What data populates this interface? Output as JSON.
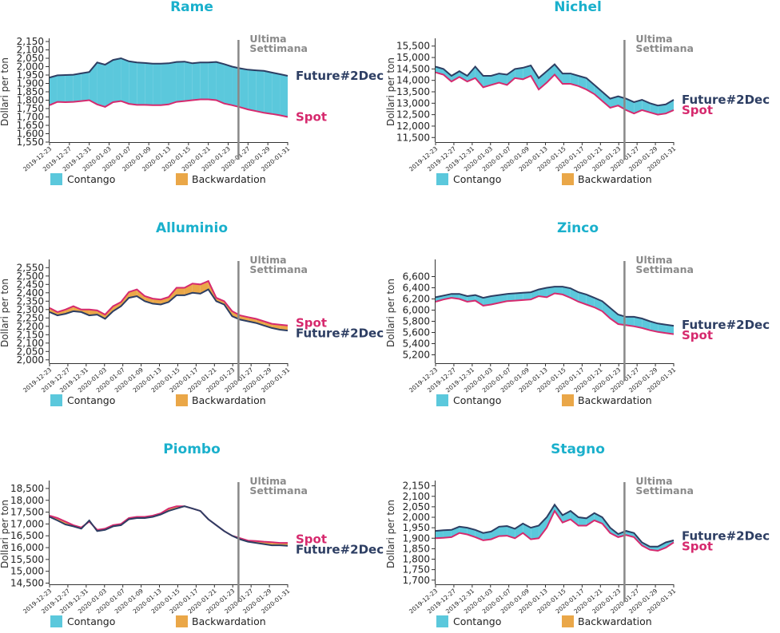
{
  "colors": {
    "title": "#1ab0cc",
    "future": "#2d3e63",
    "spot": "#d62a6e",
    "contango": "#5bc8dc",
    "backwardation": "#eaa748",
    "divider": "#888888",
    "annotation": "#8a8a8a",
    "axis": "#333333"
  },
  "chart_data": [
    {
      "type": "area",
      "title": "Rame",
      "ylabel": "Dollari per ton",
      "ylim": [
        1550,
        2150
      ],
      "yticks": [
        1550,
        1600,
        1650,
        1700,
        1750,
        1800,
        1850,
        1900,
        1950,
        2000,
        2050,
        2100,
        2150
      ],
      "tick_labels_x": [
        "2019-12-23",
        "2019-12-27",
        "2019-12-31",
        "2020-01-03",
        "2020-01-07",
        "2020-01-09",
        "2020-01-13",
        "2020-01-15",
        "2020-01-21",
        "2020-01-23",
        "2020-01-27",
        "2020-01-29",
        "2020-01-31"
      ],
      "annotation": [
        "Ultima",
        "Settimana"
      ],
      "last_week_start_index": 24,
      "legend": [
        "Contango",
        "Backwardation"
      ],
      "series": [
        {
          "name": "Future#2Dec",
          "values": [
            1935,
            1948,
            1950,
            1952,
            1960,
            1968,
            2025,
            2012,
            2040,
            2050,
            2032,
            2025,
            2022,
            2018,
            2018,
            2020,
            2028,
            2030,
            2020,
            2025,
            2025,
            2028,
            2015,
            2000,
            1990,
            1982,
            1978,
            1975,
            1965,
            1955,
            1945
          ]
        },
        {
          "name": "Spot",
          "values": [
            1770,
            1790,
            1788,
            1790,
            1795,
            1800,
            1775,
            1760,
            1788,
            1795,
            1778,
            1772,
            1772,
            1770,
            1770,
            1775,
            1790,
            1795,
            1800,
            1805,
            1805,
            1800,
            1780,
            1770,
            1758,
            1745,
            1735,
            1725,
            1718,
            1710,
            1700
          ]
        }
      ]
    },
    {
      "type": "area",
      "title": "Nichel",
      "ylabel": "Dollari per ton",
      "ylim": [
        11300,
        15700
      ],
      "yticks": [
        11500,
        12000,
        12500,
        13000,
        13500,
        14000,
        14500,
        15000,
        15500
      ],
      "tick_labels_x": [
        "2019-12-23",
        "2019-12-27",
        "2019-12-31",
        "2020-01-03",
        "2020-01-07",
        "2020-01-09",
        "2020-01-13",
        "2020-01-15",
        "2020-01-17",
        "2020-01-21",
        "2020-01-23",
        "2020-01-27",
        "2020-01-29",
        "2020-01-31"
      ],
      "annotation": [
        "Ultima",
        "Settimana"
      ],
      "last_week_start_index": 24,
      "legend": [
        "Contango",
        "Backwardation"
      ],
      "series": [
        {
          "name": "Future#2Dec",
          "values": [
            14600,
            14500,
            14200,
            14400,
            14200,
            14600,
            14200,
            14200,
            14300,
            14250,
            14500,
            14550,
            14650,
            14100,
            14400,
            14700,
            14300,
            14300,
            14200,
            14100,
            13800,
            13500,
            13200,
            13300,
            13200,
            13050,
            13150,
            13000,
            12900,
            12950,
            13150
          ]
        },
        {
          "name": "Spot",
          "values": [
            14350,
            14250,
            13950,
            14150,
            13950,
            14100,
            13700,
            13800,
            13900,
            13800,
            14100,
            14050,
            14200,
            13600,
            13900,
            14250,
            13850,
            13850,
            13750,
            13600,
            13400,
            13100,
            12800,
            12900,
            12700,
            12550,
            12700,
            12600,
            12500,
            12550,
            12700
          ]
        }
      ]
    },
    {
      "type": "area",
      "title": "Alluminio",
      "ylabel": "Dollari per ton",
      "ylim": [
        1980,
        2580
      ],
      "yticks": [
        2000,
        2050,
        2100,
        2150,
        2200,
        2250,
        2300,
        2350,
        2400,
        2450,
        2500,
        2550
      ],
      "tick_labels_x": [
        "2019-12-23",
        "2019-12-27",
        "2019-12-31",
        "2020-01-03",
        "2020-01-07",
        "2020-01-09",
        "2020-01-13",
        "2020-01-15",
        "2020-01-17",
        "2020-01-21",
        "2020-01-23",
        "2020-01-27",
        "2020-01-29",
        "2020-01-31"
      ],
      "annotation": [
        "Ultima",
        "Settimana"
      ],
      "last_week_start_index": 24,
      "legend": [
        "Contango",
        "Backwardation"
      ],
      "series": [
        {
          "name": "Future#2Dec",
          "values": [
            2285,
            2265,
            2275,
            2290,
            2285,
            2265,
            2270,
            2245,
            2290,
            2320,
            2370,
            2380,
            2350,
            2335,
            2330,
            2345,
            2385,
            2385,
            2400,
            2395,
            2420,
            2350,
            2330,
            2260,
            2240,
            2230,
            2220,
            2205,
            2190,
            2180,
            2175
          ]
        },
        {
          "name": "Spot",
          "values": [
            2310,
            2285,
            2300,
            2320,
            2300,
            2300,
            2295,
            2270,
            2320,
            2345,
            2405,
            2420,
            2380,
            2365,
            2360,
            2375,
            2430,
            2430,
            2455,
            2450,
            2470,
            2370,
            2350,
            2290,
            2265,
            2255,
            2245,
            2230,
            2215,
            2210,
            2205
          ]
        }
      ]
    },
    {
      "type": "area",
      "title": "Zinco",
      "ylabel": "Dollari per ton",
      "ylim": [
        5050,
        6850
      ],
      "yticks": [
        5200,
        5400,
        5600,
        5800,
        6000,
        6200,
        6400,
        6600
      ],
      "tick_labels_x": [
        "2019-12-23",
        "2019-12-27",
        "2019-12-31",
        "2020-01-03",
        "2020-01-07",
        "2020-01-09",
        "2020-01-13",
        "2020-01-15",
        "2020-01-17",
        "2020-01-21",
        "2020-01-23",
        "2020-01-27",
        "2020-01-29",
        "2020-01-31"
      ],
      "annotation": [
        "Ultima",
        "Settimana"
      ],
      "last_week_start_index": 24,
      "legend": [
        "Contango",
        "Backwardation"
      ],
      "series": [
        {
          "name": "Future#2Dec",
          "values": [
            6230,
            6260,
            6290,
            6290,
            6250,
            6270,
            6220,
            6250,
            6270,
            6290,
            6300,
            6310,
            6320,
            6370,
            6400,
            6420,
            6420,
            6390,
            6320,
            6280,
            6220,
            6160,
            6040,
            5920,
            5880,
            5880,
            5850,
            5800,
            5760,
            5740,
            5720
          ]
        },
        {
          "name": "Spot",
          "values": [
            6150,
            6190,
            6220,
            6200,
            6150,
            6170,
            6080,
            6100,
            6130,
            6160,
            6170,
            6180,
            6190,
            6250,
            6230,
            6300,
            6280,
            6220,
            6150,
            6100,
            6050,
            5980,
            5850,
            5750,
            5730,
            5710,
            5680,
            5640,
            5610,
            5590,
            5570
          ]
        }
      ]
    },
    {
      "type": "area",
      "title": "Piombo",
      "ylabel": "Dollari per ton",
      "ylim": [
        14450,
        18700
      ],
      "yticks": [
        14500,
        15000,
        15500,
        16000,
        16500,
        17000,
        17500,
        18000,
        18500
      ],
      "tick_labels_x": [
        "2019-12-23",
        "2019-12-27",
        "2019-12-31",
        "2020-01-03",
        "2020-01-07",
        "2020-01-09",
        "2020-01-13",
        "2020-01-15",
        "2020-01-17",
        "2020-01-21",
        "2020-01-23",
        "2020-01-27",
        "2020-01-29",
        "2020-01-31"
      ],
      "annotation": [
        "Ultima",
        "Settimana"
      ],
      "last_week_start_index": 24,
      "legend": [
        "Contango",
        "Backwardation"
      ],
      "series": [
        {
          "name": "Future#2Dec",
          "values": [
            17300,
            17150,
            16980,
            16900,
            16800,
            17150,
            16700,
            16750,
            16900,
            16950,
            17200,
            17250,
            17250,
            17300,
            17400,
            17550,
            17650,
            17750,
            17650,
            17550,
            17200,
            16950,
            16700,
            16500,
            16350,
            16250,
            16200,
            16150,
            16100,
            16100,
            16080
          ]
        },
        {
          "name": "Spot",
          "values": [
            17350,
            17250,
            17100,
            16950,
            16850,
            17100,
            16750,
            16800,
            16950,
            17000,
            17250,
            17300,
            17300,
            17350,
            17450,
            17650,
            17750,
            17750,
            17650,
            17550,
            17200,
            16950,
            16700,
            16500,
            16400,
            16300,
            16280,
            16250,
            16230,
            16200,
            16200
          ]
        }
      ]
    },
    {
      "type": "area",
      "title": "Stagno",
      "ylabel": "Dollari per ton",
      "ylim": [
        1680,
        2160
      ],
      "yticks": [
        1700,
        1750,
        1800,
        1850,
        1900,
        1950,
        2000,
        2050,
        2100,
        2150
      ],
      "tick_labels_x": [
        "2019-12-23",
        "2019-12-27",
        "2019-12-31",
        "2020-01-03",
        "2020-01-07",
        "2020-01-09",
        "2020-01-13",
        "2020-01-15",
        "2020-01-17",
        "2020-01-21",
        "2020-01-23",
        "2020-01-27",
        "2020-01-29",
        "2020-01-31"
      ],
      "annotation": [
        "Ultima",
        "Settimana"
      ],
      "last_week_start_index": 24,
      "legend": [
        "Contango",
        "Backwardation"
      ],
      "series": [
        {
          "name": "Future#2Dec",
          "values": [
            1935,
            1938,
            1940,
            1955,
            1950,
            1940,
            1925,
            1932,
            1955,
            1958,
            1945,
            1970,
            1950,
            1960,
            2000,
            2060,
            2010,
            2030,
            2000,
            1995,
            2020,
            2000,
            1950,
            1920,
            1935,
            1925,
            1880,
            1860,
            1860,
            1880,
            1890
          ]
        },
        {
          "name": "Spot",
          "values": [
            1900,
            1902,
            1905,
            1925,
            1918,
            1905,
            1890,
            1895,
            1910,
            1912,
            1900,
            1925,
            1895,
            1900,
            1950,
            2030,
            1975,
            1990,
            1960,
            1960,
            1985,
            1970,
            1925,
            1905,
            1915,
            1905,
            1865,
            1845,
            1840,
            1855,
            1880
          ]
        }
      ]
    }
  ]
}
